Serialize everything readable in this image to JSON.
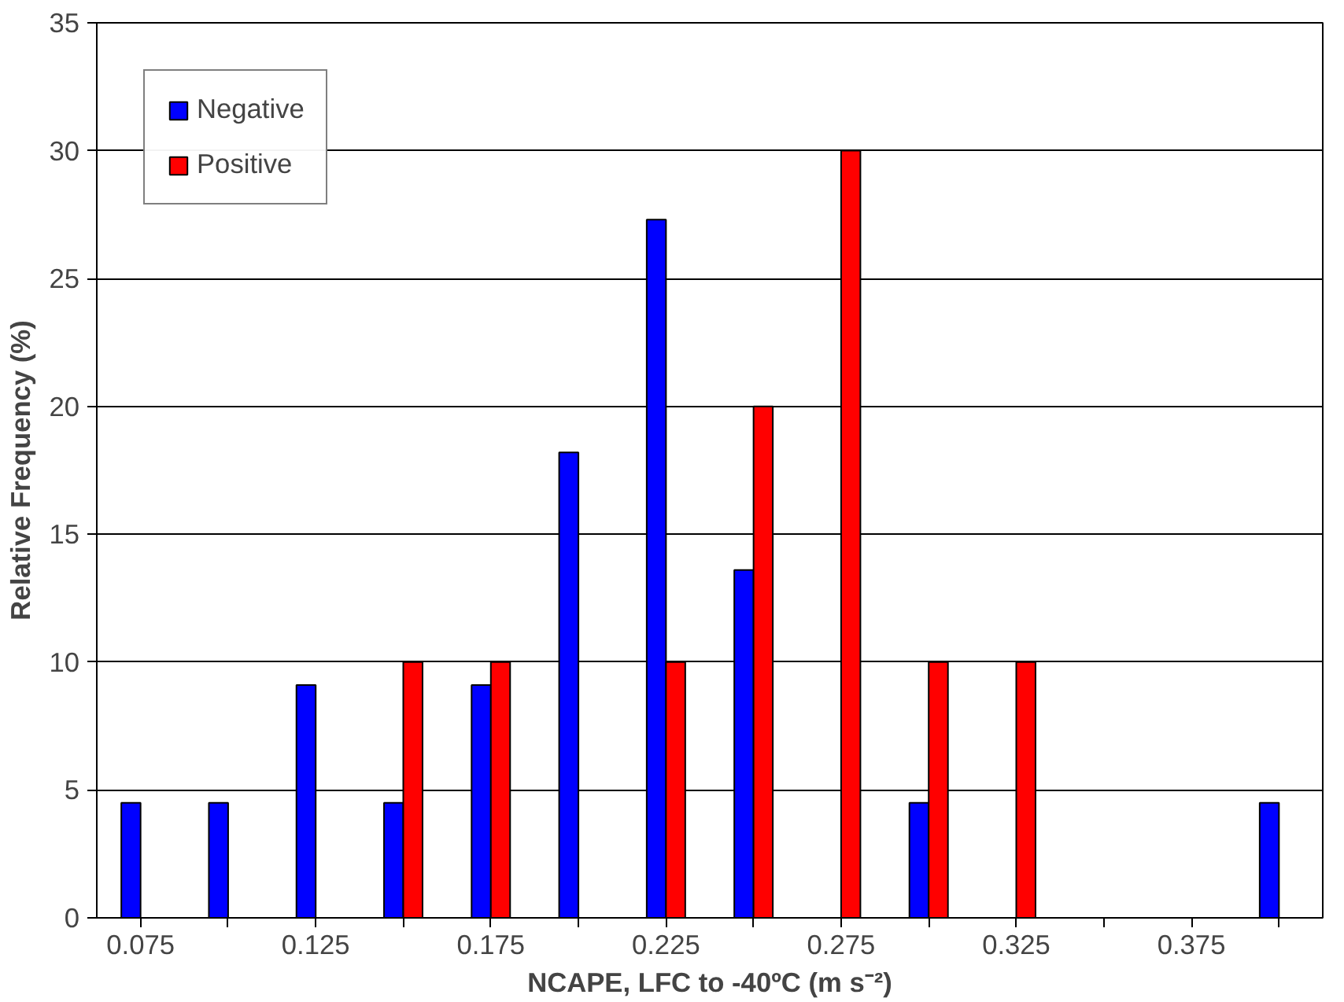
{
  "chart_data": {
    "type": "bar",
    "xlabel": "NCAPE, LFC to -40ºC (m s⁻²)",
    "ylabel": "Relative Frequency (%)",
    "categories": [
      "0.075",
      null,
      "0.125",
      null,
      "0.175",
      null,
      "0.225",
      null,
      "0.275",
      null,
      "0.325",
      null,
      "0.375",
      null
    ],
    "series": [
      {
        "name": "Negative",
        "color": "#0000ff",
        "values": [
          4.5,
          4.5,
          9.1,
          4.5,
          9.1,
          18.2,
          27.3,
          13.6,
          null,
          4.5,
          null,
          null,
          null,
          4.5
        ]
      },
      {
        "name": "Positive",
        "color": "#ff0000",
        "values": [
          null,
          null,
          null,
          10,
          10,
          null,
          10,
          20,
          30,
          10,
          10,
          null,
          null,
          null
        ]
      }
    ],
    "ylim": [
      0,
      35
    ],
    "yticks": [
      0,
      5,
      10,
      15,
      20,
      25,
      30,
      35
    ],
    "grid": "y",
    "legend": "top left"
  }
}
